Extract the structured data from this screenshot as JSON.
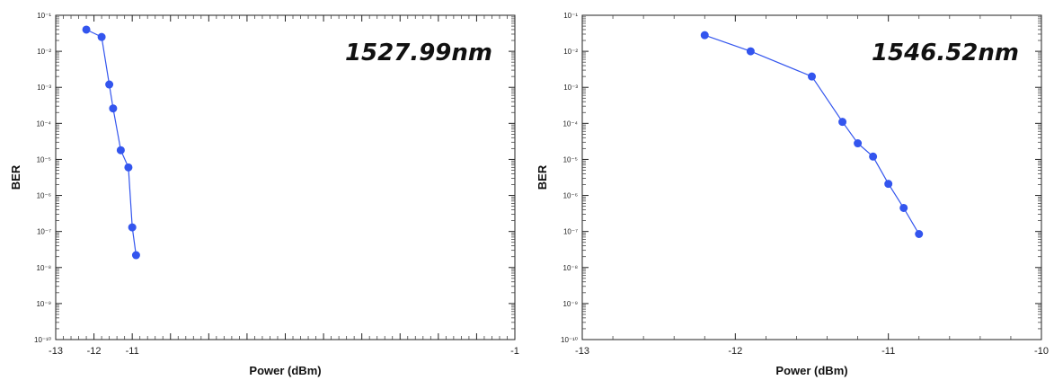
{
  "colors": {
    "series": "#3355ee",
    "axis": "#222222"
  },
  "chart_data": [
    {
      "type": "line",
      "annotation": "1527.99nm",
      "xlabel": "Power (dBm)",
      "ylabel": "BER",
      "xlim": [
        -13,
        -1
      ],
      "ylim_log10": [
        -10,
        -1
      ],
      "y_scale": "log",
      "x_tick_labels": [
        "-13",
        "-12",
        "-11",
        "-1"
      ],
      "y_tick_labels": [
        "10⁻¹",
        "10⁻²",
        "10⁻³",
        "10⁻⁴",
        "10⁻⁵",
        "10⁻⁶",
        "10⁻⁷",
        "10⁻⁸",
        "10⁻⁹",
        "10⁻¹⁰"
      ],
      "grid": false,
      "series": [
        {
          "x": [
            -12.2,
            -11.8,
            -11.6,
            -11.5,
            -11.3,
            -11.1,
            -11.0,
            -10.9
          ],
          "y": [
            0.04,
            0.025,
            0.0012,
            0.00026,
            1.8e-05,
            6e-06,
            1.3e-07,
            2.2e-08
          ]
        }
      ]
    },
    {
      "type": "line",
      "annotation": "1546.52nm",
      "xlabel": "Power (dBm)",
      "ylabel": "BER",
      "xlim": [
        -13,
        -10
      ],
      "ylim_log10": [
        -10,
        -1
      ],
      "y_scale": "log",
      "x_tick_labels": [
        "-13",
        "-12",
        "-11",
        "-10"
      ],
      "y_tick_labels": [
        "10⁻¹",
        "10⁻²",
        "10⁻³",
        "10⁻⁴",
        "10⁻⁵",
        "10⁻⁶",
        "10⁻⁷",
        "10⁻⁸",
        "10⁻⁹",
        "10⁻¹⁰"
      ],
      "grid": false,
      "series": [
        {
          "x": [
            -12.2,
            -11.9,
            -11.5,
            -11.3,
            -11.2,
            -11.1,
            -11.0,
            -10.9,
            -10.8
          ],
          "y": [
            0.028,
            0.01,
            0.002,
            0.00011,
            2.8e-05,
            1.2e-05,
            2.1e-06,
            4.5e-07,
            8.5e-08
          ]
        }
      ]
    }
  ]
}
